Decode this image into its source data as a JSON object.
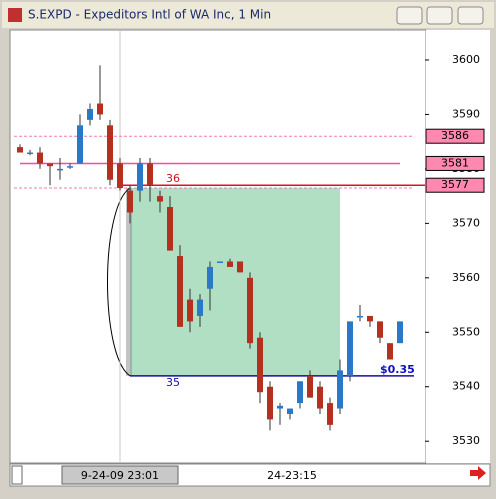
{
  "window_title": "S.EXPD - Expeditors Intl of WA Inc, 1 Min",
  "chart_data": {
    "type": "candlestick",
    "categories": [
      null,
      null,
      null,
      null,
      null,
      null,
      null,
      null,
      null,
      null,
      "9-24-09 23:01",
      null,
      null,
      null,
      null,
      null,
      null,
      null,
      null,
      null,
      null,
      null,
      null,
      null,
      "24-23:15",
      null,
      null,
      null,
      null,
      null,
      null,
      null,
      null,
      null,
      null,
      null,
      null,
      null,
      null
    ],
    "open": [
      3584,
      3583,
      3583,
      3581,
      3580,
      3580.5,
      3581,
      3589,
      3592,
      3588,
      3581,
      3576,
      3576,
      3581,
      3575,
      3573,
      3564,
      3556,
      3553,
      3558,
      3563,
      3563,
      3563,
      3560,
      3549,
      3540,
      3536,
      3535,
      3537,
      3542,
      3540,
      3537,
      3536,
      3542,
      3553,
      3553,
      3552,
      3548,
      3548
    ],
    "high": [
      3584.5,
      3583.5,
      3584,
      3581,
      3582,
      3581,
      3590,
      3592,
      3599,
      3589,
      3582,
      3577,
      3582,
      3582,
      3576,
      3575,
      3566,
      3558,
      3557,
      3563,
      3563,
      3563.5,
      3563,
      3561,
      3550,
      3541,
      3537,
      3536,
      3541,
      3543,
      3541,
      3538,
      3545,
      3552,
      3555,
      3553,
      3552,
      3548,
      3552
    ],
    "low": [
      3583,
      3582.5,
      3580,
      3577,
      3578,
      3580,
      3581,
      3588,
      3589,
      3577,
      3576,
      3570,
      3574,
      3574,
      3572,
      3565,
      3551,
      3550,
      3551,
      3554,
      3563,
      3562,
      3561,
      3547,
      3537,
      3532,
      3533,
      3534,
      3536,
      3538,
      3535,
      3532,
      3535,
      3541,
      3552,
      3551,
      3548,
      3545,
      3548
    ],
    "close": [
      3583,
      3583,
      3581,
      3580.5,
      3580,
      3580.5,
      3588,
      3591,
      3590,
      3578,
      3576.5,
      3572,
      3581,
      3577,
      3574,
      3565,
      3551,
      3552,
      3556,
      3562,
      3563,
      3562,
      3561,
      3548,
      3539,
      3534,
      3536.5,
      3536,
      3541,
      3538,
      3536,
      3533,
      3543,
      3552,
      3553,
      3552,
      3549,
      3545,
      3552
    ],
    "up_color": "#2a78c8",
    "down_color": "#b5301f",
    "ylim": [
      3526,
      3605.5
    ],
    "yticks": [
      3530,
      3540,
      3550,
      3560,
      3570,
      3580,
      3590,
      3600
    ],
    "levels": [
      3586,
      3581,
      3577
    ],
    "zone": [
      3576.5,
      3542
    ],
    "annotations": [
      "36",
      "35",
      "$0.35"
    ]
  }
}
